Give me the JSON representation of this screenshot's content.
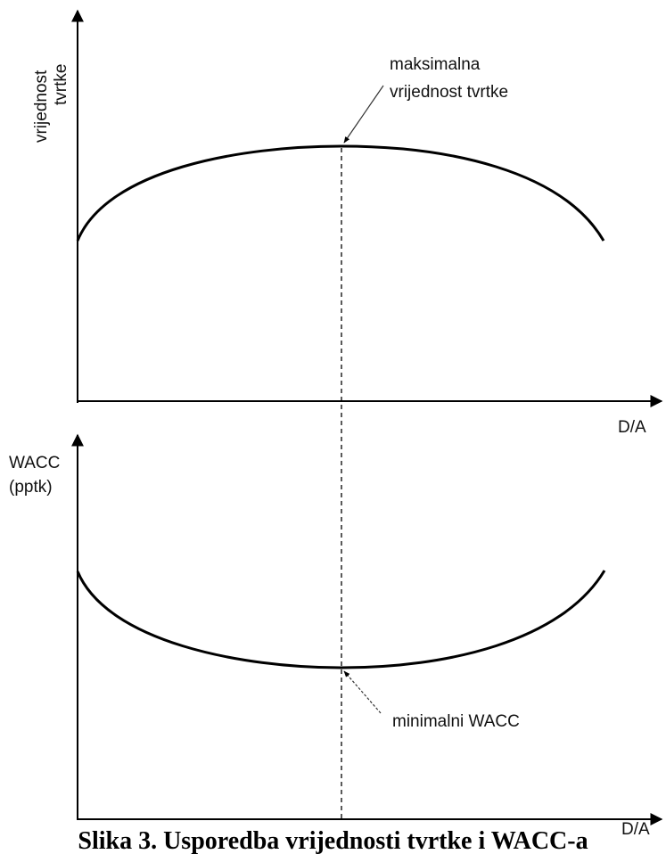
{
  "top_chart": {
    "y_label_line1": "vrijednost",
    "y_label_line2": "tvrtke",
    "x_label": "D/A",
    "annotation_line1": "maksimalna",
    "annotation_line2": "vrijednost tvrtke"
  },
  "bottom_chart": {
    "y_label_line1": "WACC",
    "y_label_line2": "(pptk)",
    "x_label": "D/A",
    "annotation": "minimalni WACC"
  },
  "caption": "Slika 3. Usporedba vrijednosti tvrtke i WACC-a"
}
